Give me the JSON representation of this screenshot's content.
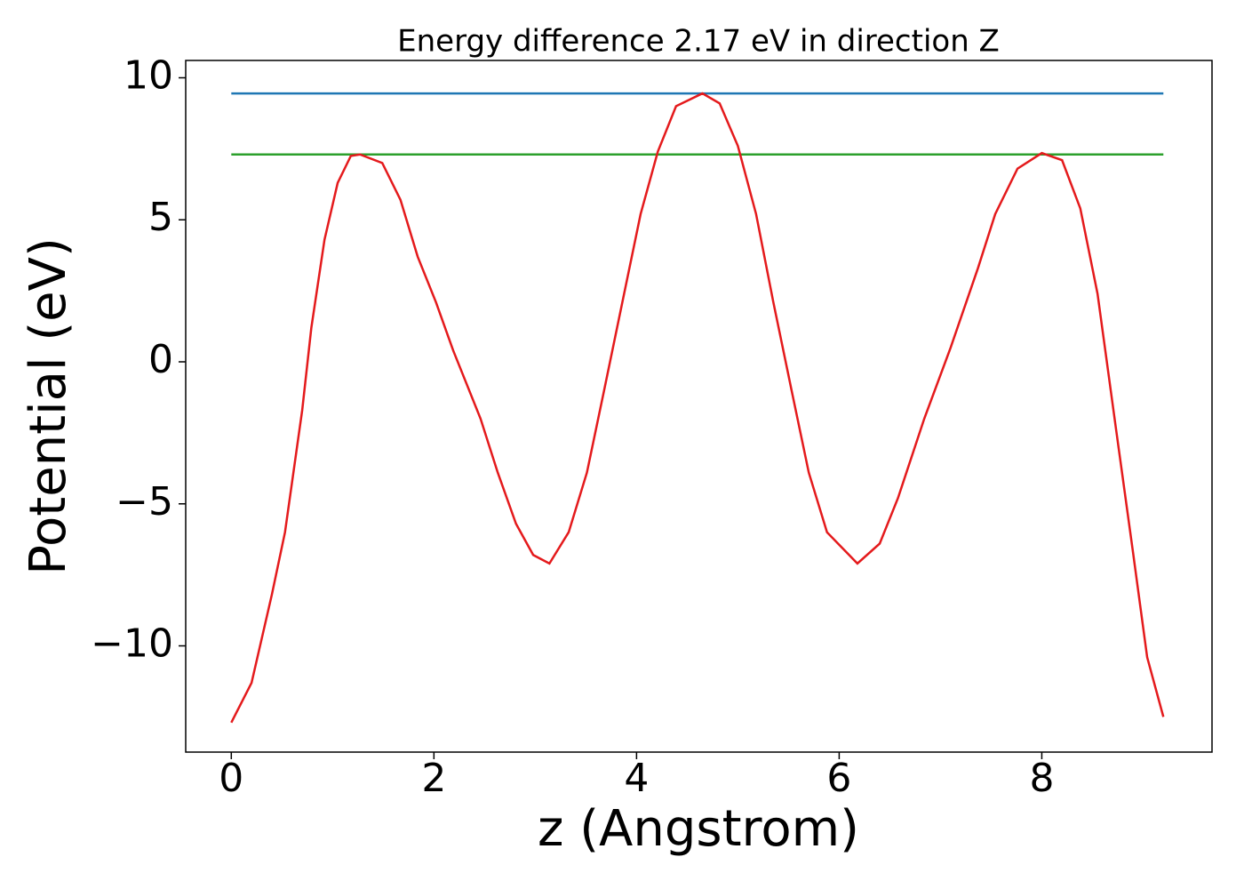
{
  "chart_data": {
    "type": "line",
    "title": "Energy difference 2.17 eV in direction Z",
    "xlabel": "z (Angstrom)",
    "ylabel": "Potential (eV)",
    "series": [
      {
        "color": "#1f77b4",
        "x": [
          0,
          9.2
        ],
        "values": [
          9.45,
          9.45
        ]
      },
      {
        "color": "#2ca02c",
        "x": [
          0,
          9.2
        ],
        "values": [
          7.3,
          7.3
        ]
      },
      {
        "color": "#e41a1c",
        "x": [
          0,
          0.1,
          0.2,
          0.4,
          0.53,
          0.7,
          0.79,
          0.92,
          1.05,
          1.18,
          1.27,
          1.49,
          1.67,
          1.84,
          2.02,
          2.19,
          2.46,
          2.63,
          2.81,
          2.98,
          3.14,
          3.33,
          3.51,
          3.68,
          3.86,
          4.04,
          4.21,
          4.39,
          4.65,
          4.82,
          5.0,
          5.18,
          5.35,
          5.53,
          5.7,
          5.88,
          6.18,
          6.4,
          6.58,
          6.84,
          7.1,
          7.37,
          7.54,
          7.76,
          8.0,
          8.2,
          8.38,
          8.55,
          8.73,
          8.9,
          9.04,
          9.2
        ],
        "values": [
          -12.7,
          -12.0,
          -11.3,
          -8.2,
          -6.0,
          -1.7,
          1.2,
          4.3,
          6.3,
          7.25,
          7.3,
          7.0,
          5.7,
          3.7,
          2.1,
          0.4,
          -2.0,
          -3.9,
          -5.7,
          -6.8,
          -7.1,
          -6.0,
          -3.9,
          -1.0,
          2.1,
          5.2,
          7.4,
          9.0,
          9.45,
          9.1,
          7.6,
          5.2,
          2.1,
          -1.0,
          -3.9,
          -6.0,
          -7.1,
          -6.4,
          -4.8,
          -2.0,
          0.5,
          3.3,
          5.2,
          6.8,
          7.35,
          7.1,
          5.4,
          2.4,
          -2.3,
          -6.7,
          -10.4,
          -12.5
        ]
      }
    ],
    "xlim": [
      -0.45,
      9.68
    ],
    "ylim": [
      -13.74,
      10.61
    ],
    "xticks": [
      0,
      2,
      4,
      6,
      8
    ],
    "yticks": [
      -10,
      -5,
      0,
      5,
      10
    ]
  }
}
